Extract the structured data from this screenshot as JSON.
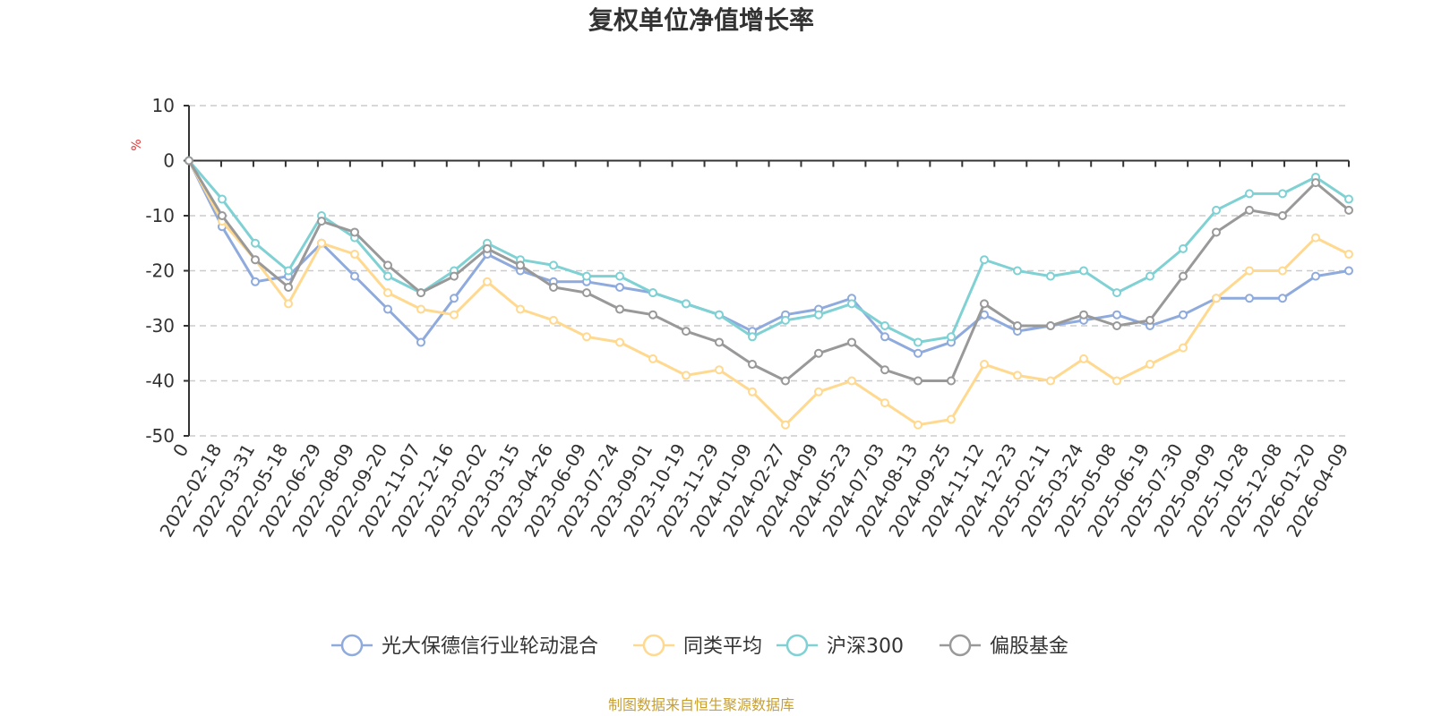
{
  "chart_data": {
    "type": "line",
    "title": "复权单位净值增长率",
    "ylabel": "%",
    "ylim": [
      -50,
      10
    ],
    "yticks": [
      "10",
      "0",
      "-10",
      "-20",
      "-30",
      "-40",
      "-50"
    ],
    "ytick_values": [
      10,
      0,
      -10,
      -20,
      -30,
      -40,
      -50
    ],
    "categories": [
      "0",
      "2022-02-18",
      "2022-03-31",
      "2022-05-18",
      "2022-06-29",
      "2022-08-09",
      "2022-09-20",
      "2022-11-07",
      "2022-12-16",
      "2023-02-02",
      "2023-03-15",
      "2023-04-26",
      "2023-06-09",
      "2023-07-24",
      "2023-09-01",
      "2023-10-19",
      "2023-11-29",
      "2024-01-09",
      "2024-02-27",
      "2024-04-09",
      "2024-05-23",
      "2024-07-03",
      "2024-08-13",
      "2024-09-25",
      "2024-11-12",
      "2024-12-23",
      "2025-02-11",
      "2025-03-24",
      "2025-05-08",
      "2025-06-19",
      "2025-07-30",
      "2025-09-09",
      "2025-10-28",
      "2025-12-08",
      "2026-01-20",
      "2026-04-09"
    ],
    "grid": true,
    "legend_position": "bottom",
    "series": [
      {
        "name": "光大保德信行业轮动混合",
        "color": "#8faadc",
        "values": [
          0,
          -12,
          -22,
          -21,
          -15,
          -21,
          -27,
          -33,
          -25,
          -17,
          -20,
          -22,
          -22,
          -23,
          -24,
          -26,
          -28,
          -31,
          -28,
          -27,
          -25,
          -32,
          -35,
          -33,
          -28,
          -31,
          -30,
          -29,
          -28,
          -30,
          -28,
          -25,
          -25,
          -25,
          -21,
          -20
        ]
      },
      {
        "name": "同类平均",
        "color": "#ffd98f",
        "values": [
          0,
          -11,
          -18,
          -26,
          -15,
          -17,
          -24,
          -27,
          -28,
          -22,
          -27,
          -29,
          -32,
          -33,
          -36,
          -39,
          -38,
          -42,
          -48,
          -42,
          -40,
          -44,
          -48,
          -47,
          -37,
          -39,
          -40,
          -36,
          -40,
          -37,
          -34,
          -25,
          -20,
          -20,
          -14,
          -17
        ]
      },
      {
        "name": "沪深300",
        "color": "#7fd1d4",
        "values": [
          0,
          -7,
          -15,
          -20,
          -10,
          -14,
          -21,
          -24,
          -20,
          -15,
          -18,
          -19,
          -21,
          -21,
          -24,
          -26,
          -28,
          -32,
          -29,
          -28,
          -26,
          -30,
          -33,
          -32,
          -18,
          -20,
          -21,
          -20,
          -24,
          -21,
          -16,
          -9,
          -6,
          -6,
          -3,
          -7
        ]
      },
      {
        "name": "偏股基金",
        "color": "#999999",
        "values": [
          0,
          -10,
          -18,
          -23,
          -11,
          -13,
          -19,
          -24,
          -21,
          -16,
          -19,
          -23,
          -24,
          -27,
          -28,
          -31,
          -33,
          -37,
          -40,
          -35,
          -33,
          -38,
          -40,
          -40,
          -26,
          -30,
          -30,
          -28,
          -30,
          -29,
          -21,
          -13,
          -9,
          -10,
          -4,
          -9
        ]
      }
    ]
  },
  "source": {
    "text": "制图数据来自恒生聚源数据库",
    "color": "#c8a030"
  },
  "unit_color": "#e83030"
}
